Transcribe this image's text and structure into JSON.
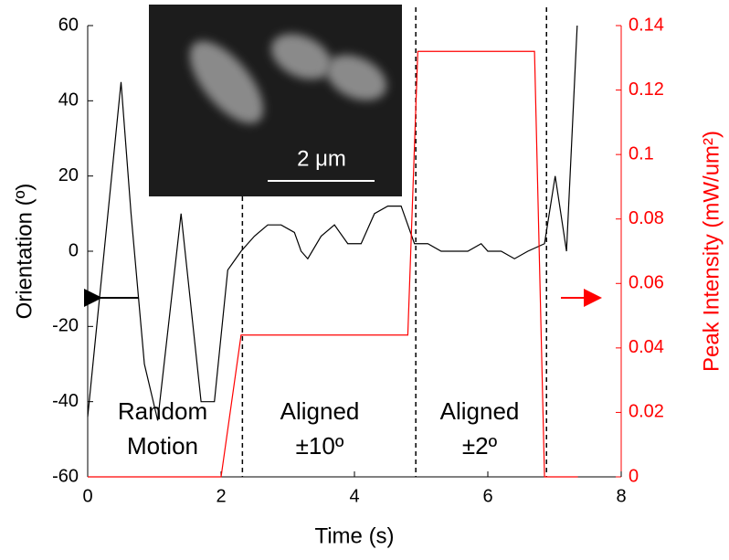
{
  "chart_data": {
    "type": "line",
    "x_label": "Time (s)",
    "y_label": "Orientation (º)",
    "y2_label": "Peak Intensity (mW/um²)",
    "xlim": [
      0,
      8
    ],
    "xticks": [
      0,
      2,
      4,
      6,
      8
    ],
    "ylim": [
      -60,
      60
    ],
    "yticks": [
      -60,
      -40,
      -20,
      0,
      20,
      40,
      60
    ],
    "y2lim": [
      0,
      0.14
    ],
    "y2ticks": [
      0,
      0.02,
      0.04,
      0.06,
      0.08,
      0.1,
      0.12,
      0.14
    ],
    "series": [
      {
        "color": "#000000",
        "x": [
          0,
          0.5,
          0.65,
          0.85,
          1.05,
          1.4,
          1.7,
          1.9,
          2.1,
          2.3,
          2.5,
          2.7,
          2.9,
          3.1,
          3.2,
          3.3,
          3.5,
          3.7,
          3.9,
          4.1,
          4.3,
          4.5,
          4.7,
          4.9,
          5.1,
          5.3,
          5.5,
          5.7,
          5.9,
          6.0,
          6.2,
          6.4,
          6.6,
          6.85,
          7.01,
          7.18,
          7.34
        ],
        "values": [
          -44,
          45,
          10,
          -30,
          -45,
          10,
          -40,
          -40,
          -5,
          0,
          4,
          7,
          7,
          5,
          0,
          -2,
          4,
          7,
          2,
          2,
          10,
          12,
          12,
          2,
          2,
          0,
          0,
          0,
          2,
          0,
          0,
          -2,
          0,
          2,
          20,
          0,
          60
        ]
      },
      {
        "color": "#ff0000",
        "axis": "y2",
        "x": [
          0,
          2.0,
          2.3,
          4.8,
          4.95,
          6.7,
          6.85,
          7.35
        ],
        "values": [
          0,
          0,
          0.044,
          0.044,
          0.132,
          0.132,
          0,
          0
        ]
      }
    ],
    "phase_boundaries": [
      2.32,
      4.92,
      6.88
    ],
    "annotations": [
      [
        "Random",
        "Motion"
      ],
      [
        "Aligned",
        "±10º"
      ],
      [
        "Aligned",
        "±2º"
      ]
    ],
    "inset_scale_label": "2 μm"
  }
}
